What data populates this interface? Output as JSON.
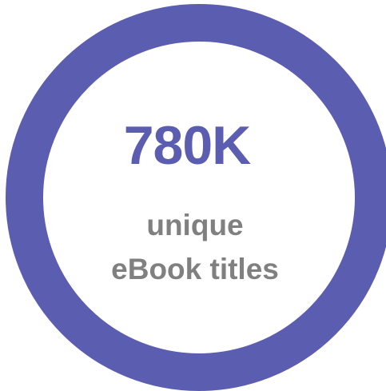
{
  "stat": {
    "value": "780K",
    "line1": "unique",
    "line2": "eBook titles"
  },
  "colors": {
    "ring": "#5b5db0",
    "value": "#5b5db0",
    "caption": "#808080",
    "background": "#ffffff"
  }
}
